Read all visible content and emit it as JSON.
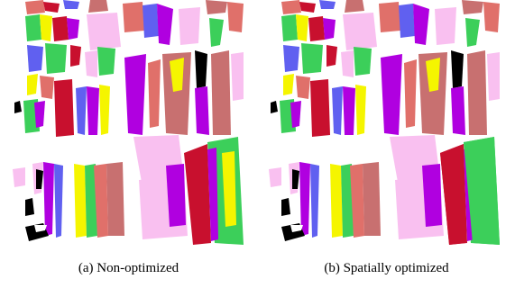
{
  "captions": [
    "(a) Non-optimized",
    "(b) Spatially optimized"
  ]
}
